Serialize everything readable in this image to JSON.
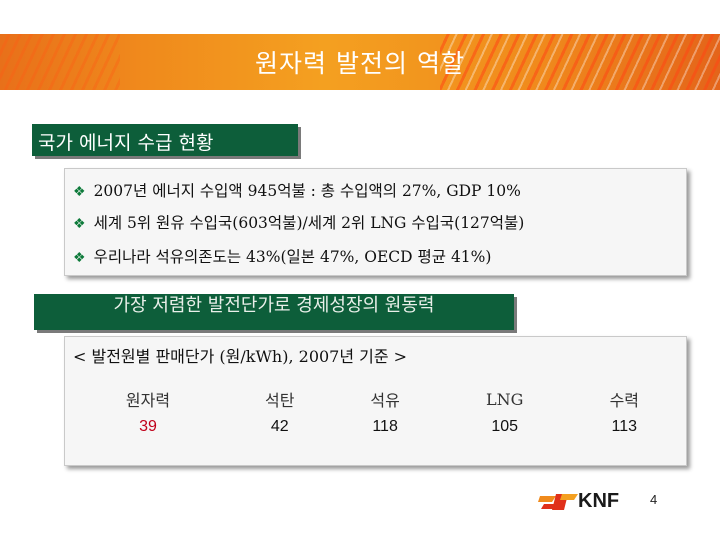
{
  "slide": {
    "title": "원자력 발전의 역할",
    "page_number": "4"
  },
  "section1": {
    "header": "국가 에너지 수급 현황",
    "bullets": [
      "2007년 에너지 수입액 945억불 : 총 수입액의 27%, GDP 10%",
      "세계 5위 원유 수입국(603억불)/세계 2위 LNG 수입국(127억불)",
      "우리나라 석유의존도는 43%(일본 47%, OECD 평균 41%)"
    ],
    "bullet_icon": "diamond-bullet-icon"
  },
  "section2": {
    "header": "가장 저렴한 발전단가로 경제성장의 원동력",
    "subtitle": "< 발전원별 판매단가 (원/kWh), 2007년 기준 >",
    "columns": [
      "원자력",
      "석탄",
      "석유",
      "LNG",
      "수력"
    ],
    "values": [
      "39",
      "42",
      "118",
      "105",
      "113"
    ]
  },
  "logo": {
    "text": "KNF"
  },
  "colors": {
    "banner": "#f08a1c",
    "section_header": "#0d5e3a",
    "highlight_value": "#c0001a",
    "bullet": "#0d7a3a"
  }
}
